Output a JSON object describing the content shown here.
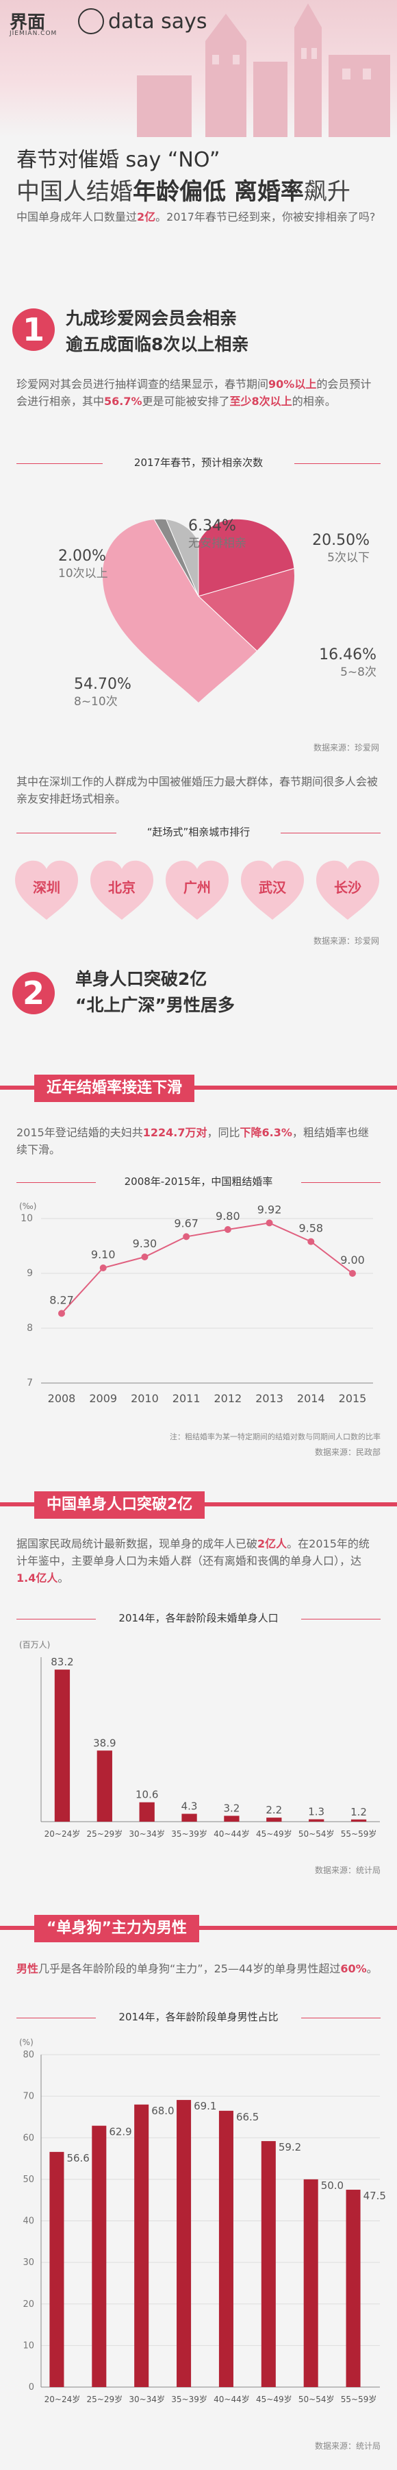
{
  "brand": {
    "name": "界面",
    "domain": "JIEMIAN.COM",
    "column": "data says"
  },
  "headline": {
    "line1": "春节对催婚 say “NO”",
    "line2_a": "中国人结婚",
    "line2_b": "年龄偏低 离婚率",
    "line2_c": "飙升"
  },
  "intro": {
    "a": "中国单身成年人口数量过",
    "b": "2亿",
    "c": "。2017年春节已经到来，你被安排相亲了吗?"
  },
  "section1": {
    "number": "1",
    "title1": "九成珍爱网会员会相亲",
    "title2": "逾五成面临8次以上相亲",
    "p_a": "珍爱网对其会员进行抽样调查的结果显示，春节期间",
    "p_b": "90%以上",
    "p_c": "的会员预计会进行相亲，其中",
    "p_d": "56.7%",
    "p_e": "更是可能被安排了",
    "p_f": "至少8次以上",
    "p_g": "的相亲。",
    "p2": "其中在深圳工作的人群成为中国被催婚压力最大群体，春节期间很多人会被亲友安排赶场式相亲。",
    "source1": "数据来源：珍爱网",
    "city_caption": "“赶场式”相亲城市排行",
    "cities": [
      "深圳",
      "北京",
      "广州",
      "武汉",
      "长沙"
    ],
    "source2": "数据来源：珍爱网"
  },
  "section2": {
    "number": "2",
    "title1": "单身人口突破2亿",
    "title2": "“北上广深”男性居多",
    "banner1": "近年结婚率接连下滑",
    "p1_a": "2015年登记结婚的夫妇共",
    "p1_b": "1224.7万对",
    "p1_c": "，同比",
    "p1_d": "下降6.3%",
    "p1_e": "，粗结婚率也继续下滑。",
    "note": "注：粗结婚率为某一特定期间的结婚对数与同期间人口数的比率",
    "source3": "数据来源：民政部",
    "banner2": "中国单身人口突破2亿",
    "p2_a": "据国家民政局统计最新数据，现单身的成年人已破",
    "p2_b": "2亿人",
    "p2_c": "。在2015年的统计年鉴中，主要单身人口为未婚人群（还有离婚和丧偶的单身人口），达",
    "p2_d": "1.4亿人",
    "p2_e": "。",
    "source4": "数据来源：统计局",
    "banner3": "“单身狗”主力为男性",
    "p3_a": "男性",
    "p3_b": "几乎是各年龄阶段的单身狗“主力”，25—44岁的单身男性超过",
    "p3_c": "60%",
    "p3_d": "。",
    "source5": "数据来源：统计局"
  },
  "chart_data": [
    {
      "type": "pie",
      "title": "2017年春节，预计相亲次数",
      "slices": [
        {
          "label": "5次以下",
          "value": 20.5,
          "display": "20.50%"
        },
        {
          "label": "5~8次",
          "value": 16.46,
          "display": "16.46%"
        },
        {
          "label": "8~10次",
          "value": 54.7,
          "display": "54.70%"
        },
        {
          "label": "10次以上",
          "value": 2.0,
          "display": "2.00%"
        },
        {
          "label": "无安排相亲",
          "value": 6.34,
          "display": "6.34%"
        }
      ],
      "colors": [
        "#d4436a",
        "#e0607f",
        "#f2a3b6",
        "#8c8c8c",
        "#bdbdbd"
      ]
    },
    {
      "type": "line",
      "title": "2008年-2015年，中国粗结婚率",
      "ylabel": "(‰)",
      "x": [
        "2008",
        "2009",
        "2010",
        "2011",
        "2012",
        "2013",
        "2014",
        "2015"
      ],
      "values": [
        8.27,
        9.1,
        9.3,
        9.67,
        9.8,
        9.92,
        9.58,
        9.0
      ],
      "labels": [
        "8.27",
        "9.10",
        "9.30",
        "9.67",
        "9.80",
        "9.92",
        "9.58",
        "9.00"
      ],
      "ylim": [
        7,
        10
      ],
      "yticks": [
        "7",
        "8",
        "9",
        "10"
      ],
      "color": "#e0607f"
    },
    {
      "type": "bar",
      "title": "2014年，各年龄阶段未婚单身人口",
      "ylabel": "(百万人)",
      "categories": [
        "20~24岁",
        "25~29岁",
        "30~34岁",
        "35~39岁",
        "40~44岁",
        "45~49岁",
        "50~54岁",
        "55~59岁"
      ],
      "values": [
        83.2,
        38.9,
        10.6,
        4.3,
        3.2,
        2.2,
        1.3,
        1.2
      ],
      "labels": [
        "83.2",
        "38.9",
        "10.6",
        "4.3",
        "3.2",
        "2.2",
        "1.3",
        "1.2"
      ],
      "ylim": [
        0,
        90
      ],
      "color": "#b22234"
    },
    {
      "type": "bar",
      "title": "2014年，各年龄阶段单身男性占比",
      "ylabel": "(%)",
      "categories": [
        "20~24岁",
        "25~29岁",
        "30~34岁",
        "35~39岁",
        "40~44岁",
        "45~49岁",
        "50~54岁",
        "55~59岁"
      ],
      "values": [
        56.6,
        62.9,
        68.0,
        69.1,
        66.5,
        59.2,
        50.0,
        47.5
      ],
      "labels": [
        "56.6",
        "62.9",
        "68.0",
        "69.1",
        "66.5",
        "59.2",
        "50.0",
        "47.5"
      ],
      "ylim": [
        0,
        80
      ],
      "yticks": [
        "0",
        "10",
        "20",
        "30",
        "40",
        "50",
        "60",
        "70",
        "80"
      ],
      "color": "#b22234"
    }
  ]
}
